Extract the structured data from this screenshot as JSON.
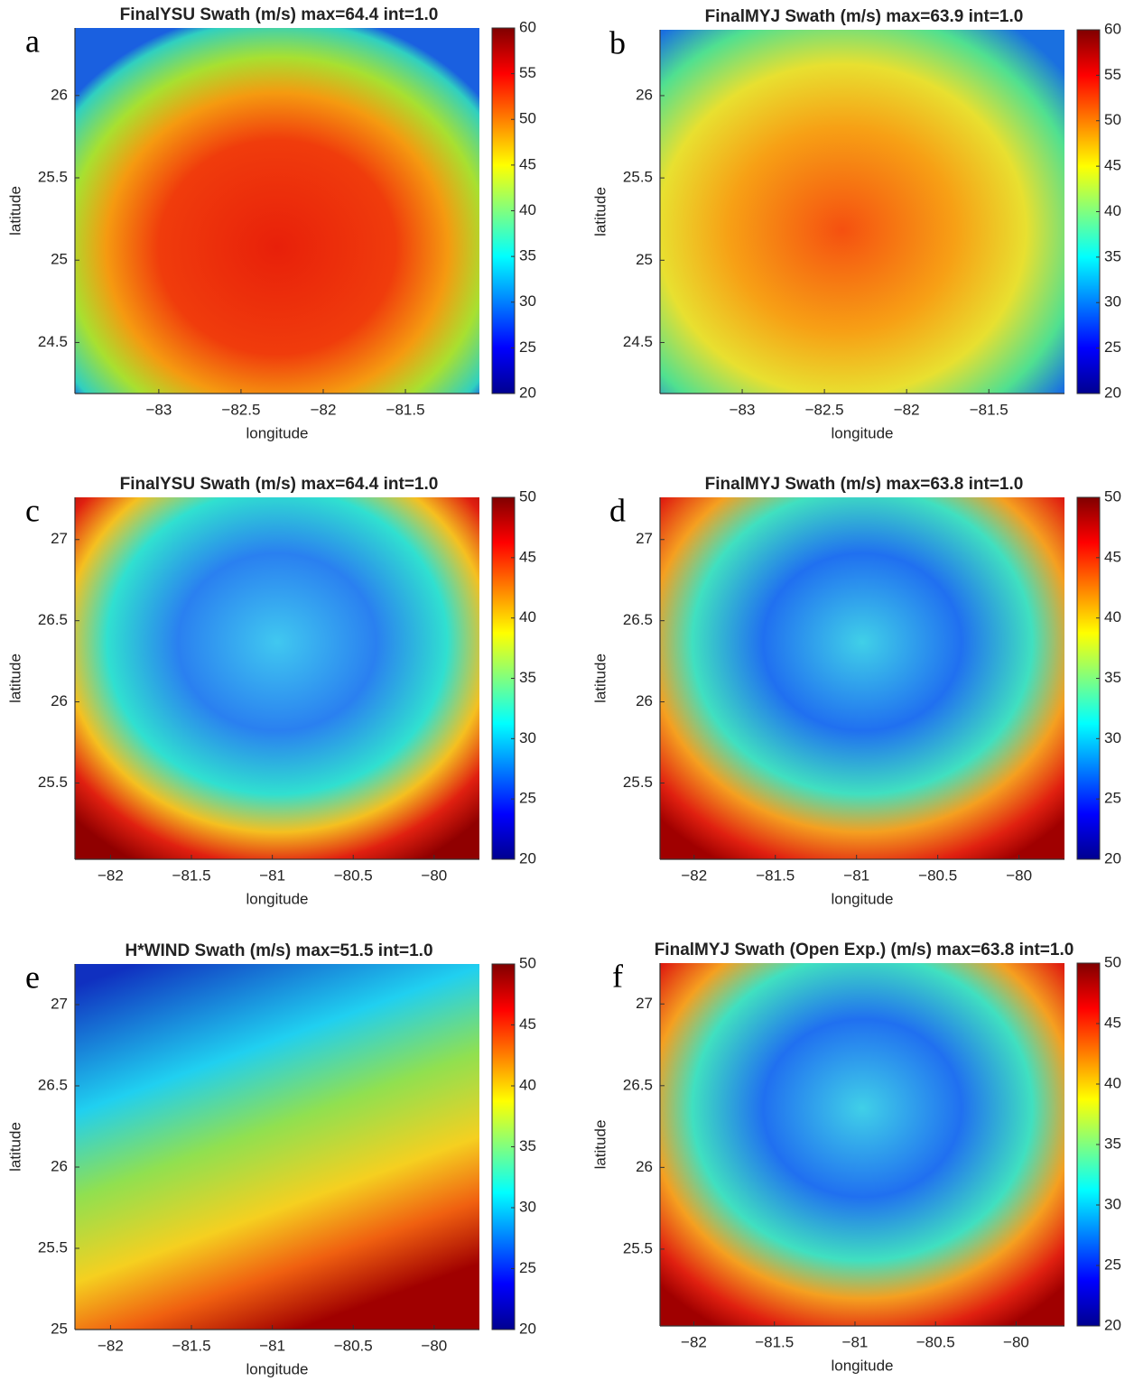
{
  "chart_data": [
    {
      "type": "heatmap",
      "panel": "a",
      "title": "FinalYSU Swath (m/s) max=64.4 int=1.0",
      "xlabel": "longitude",
      "ylabel": "latitude",
      "xlim": [
        -83.51,
        -81.05
      ],
      "xticks": [
        {
          "value": -83,
          "label": "−83"
        },
        {
          "value": -82.5,
          "label": "−82.5"
        },
        {
          "value": -82,
          "label": "−82"
        },
        {
          "value": -81.5,
          "label": "−81.5"
        }
      ],
      "ylim": [
        24.19,
        26.41
      ],
      "yticks": [
        24.5,
        25,
        25.5,
        26
      ],
      "colormap": "jet",
      "colorbar_lim": [
        20,
        60
      ],
      "colorbar_ticks": [
        20,
        25,
        30,
        35,
        40,
        45,
        50,
        55,
        60
      ]
    },
    {
      "type": "heatmap",
      "panel": "b",
      "title": "FinalMYJ Swath (m/s) max=63.9 int=1.0",
      "xlabel": "longitude",
      "ylabel": "latitude",
      "xlim": [
        -83.5,
        -81.04
      ],
      "xticks": [
        {
          "value": -83,
          "label": "−83"
        },
        {
          "value": -82.5,
          "label": "−82.5"
        },
        {
          "value": -82,
          "label": "−82"
        },
        {
          "value": -81.5,
          "label": "−81.5"
        }
      ],
      "ylim": [
        24.19,
        26.4
      ],
      "yticks": [
        24.5,
        25,
        25.5,
        26
      ],
      "colormap": "jet",
      "colorbar_lim": [
        20,
        60
      ],
      "colorbar_ticks": [
        20,
        25,
        30,
        35,
        40,
        45,
        50,
        55,
        60
      ]
    },
    {
      "type": "heatmap",
      "panel": "c",
      "title": "FinalYSU Swath (m/s) max=64.4 int=1.0",
      "xlabel": "longitude",
      "ylabel": "latitude",
      "xlim": [
        -82.22,
        -79.72
      ],
      "xticks": [
        {
          "value": -82,
          "label": "−82"
        },
        {
          "value": -81.5,
          "label": "−81.5"
        },
        {
          "value": -81,
          "label": "−81"
        },
        {
          "value": -80.5,
          "label": "−80.5"
        },
        {
          "value": -80,
          "label": "−80"
        }
      ],
      "ylim": [
        25.03,
        27.26
      ],
      "yticks": [
        25.5,
        26,
        26.5,
        27
      ],
      "colormap": "jet",
      "colorbar_lim": [
        20,
        50
      ],
      "colorbar_ticks": [
        20,
        25,
        30,
        35,
        40,
        45,
        50
      ]
    },
    {
      "type": "heatmap",
      "panel": "d",
      "title": "FinalMYJ Swath (m/s) max=63.8 int=1.0",
      "xlabel": "longitude",
      "ylabel": "latitude",
      "xlim": [
        -82.21,
        -79.72
      ],
      "xticks": [
        {
          "value": -82,
          "label": "−82"
        },
        {
          "value": -81.5,
          "label": "−81.5"
        },
        {
          "value": -81,
          "label": "−81"
        },
        {
          "value": -80.5,
          "label": "−80.5"
        },
        {
          "value": -80,
          "label": "−80"
        }
      ],
      "ylim": [
        25.03,
        27.26
      ],
      "yticks": [
        25.5,
        26,
        26.5,
        27
      ],
      "colormap": "jet",
      "colorbar_lim": [
        20,
        50
      ],
      "colorbar_ticks": [
        20,
        25,
        30,
        35,
        40,
        45,
        50
      ]
    },
    {
      "type": "heatmap",
      "panel": "e",
      "title": "H*WIND Swath (m/s) max=51.5 int=1.0",
      "xlabel": "longitude",
      "ylabel": "latitude",
      "xlim": [
        -82.22,
        -79.72
      ],
      "xticks": [
        {
          "value": -82,
          "label": "−82"
        },
        {
          "value": -81.5,
          "label": "−81.5"
        },
        {
          "value": -81,
          "label": "−81"
        },
        {
          "value": -80.5,
          "label": "−80.5"
        },
        {
          "value": -80,
          "label": "−80"
        }
      ],
      "ylim": [
        25,
        27.25
      ],
      "yticks": [
        25,
        25.5,
        26,
        26.5,
        27
      ],
      "colormap": "jet",
      "colorbar_lim": [
        20,
        50
      ],
      "colorbar_ticks": [
        20,
        25,
        30,
        35,
        40,
        45,
        50
      ]
    },
    {
      "type": "heatmap",
      "panel": "f",
      "title": "FinalMYJ Swath (Open Exp.) (m/s) max=63.8 int=1.0",
      "xlabel": "longitude",
      "ylabel": "latitude",
      "xlim": [
        -82.21,
        -79.7
      ],
      "xticks": [
        {
          "value": -82,
          "label": "−82"
        },
        {
          "value": -81.5,
          "label": "−81.5"
        },
        {
          "value": -81,
          "label": "−81"
        },
        {
          "value": -80.5,
          "label": "−80.5"
        },
        {
          "value": -80,
          "label": "−80"
        }
      ],
      "ylim": [
        25.03,
        27.25
      ],
      "yticks": [
        25.5,
        26,
        26.5,
        27
      ],
      "colormap": "jet",
      "colorbar_lim": [
        20,
        50
      ],
      "colorbar_ticks": [
        20,
        25,
        30,
        35,
        40,
        45,
        50
      ]
    }
  ]
}
